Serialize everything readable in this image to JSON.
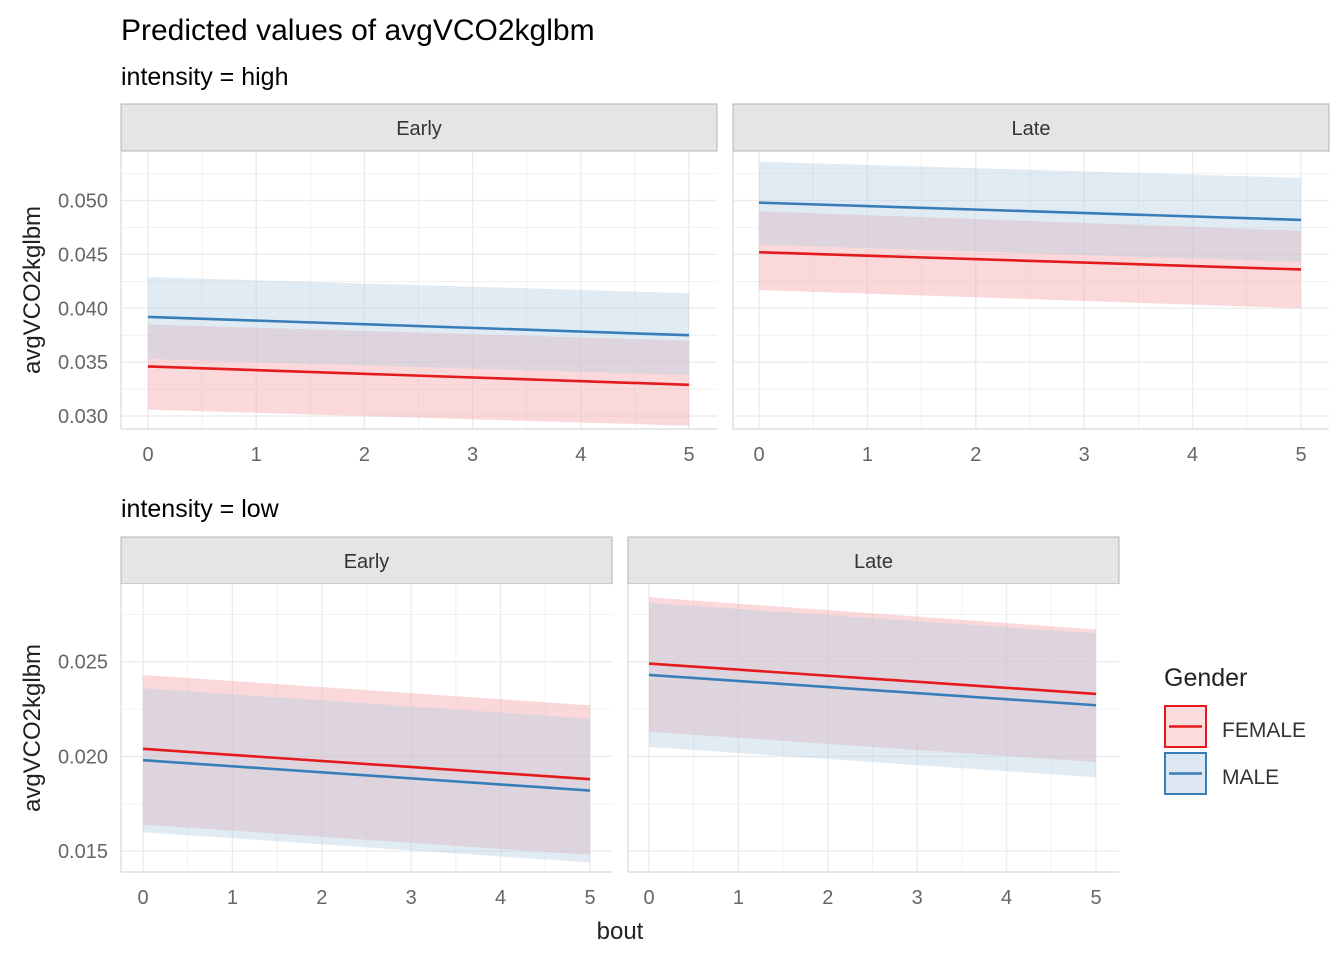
{
  "figure": {
    "title": "Predicted values of avgVCO2kglbm",
    "xlabel": "bout",
    "ylabel": "avgVCO2kglbm"
  },
  "legend": {
    "title": "Gender",
    "position": "right",
    "entries": [
      {
        "name": "FEMALE",
        "color": "#E41A1C"
      },
      {
        "name": "MALE",
        "color": "#377EB8"
      }
    ]
  },
  "colors": {
    "female_line": "#E41A1C",
    "female_band": "#F8B4B8",
    "male_line": "#377EB8",
    "male_band": "#B3CDE3",
    "strip_bg": "#E5E5E5",
    "grid": "#EBEBEB"
  },
  "chart_data": [
    {
      "type": "area",
      "group_title": "intensity = high",
      "facet": "Early",
      "xlim": [
        0,
        5
      ],
      "ylim": [
        0.0288,
        0.0545
      ],
      "xticks": [
        0,
        1,
        2,
        3,
        4,
        5
      ],
      "yticks": [
        0.03,
        0.035,
        0.04,
        0.045,
        0.05
      ],
      "ytick_labels": [
        "0.030",
        "0.035",
        "0.040",
        "0.045",
        "0.050"
      ],
      "grid": true,
      "series": [
        {
          "name": "FEMALE",
          "x": [
            0,
            5
          ],
          "y": [
            0.0346,
            0.0329
          ],
          "lower": [
            0.0306,
            0.0291
          ],
          "upper": [
            0.0385,
            0.037
          ]
        },
        {
          "name": "MALE",
          "x": [
            0,
            5
          ],
          "y": [
            0.0392,
            0.0375
          ],
          "lower": [
            0.0353,
            0.0338
          ],
          "upper": [
            0.0429,
            0.0414
          ]
        }
      ]
    },
    {
      "type": "area",
      "group_title": "intensity = high",
      "facet": "Late",
      "xlim": [
        0,
        5
      ],
      "ylim": [
        0.0288,
        0.0545
      ],
      "xticks": [
        0,
        1,
        2,
        3,
        4,
        5
      ],
      "yticks": [
        0.03,
        0.035,
        0.04,
        0.045,
        0.05
      ],
      "grid": true,
      "series": [
        {
          "name": "FEMALE",
          "x": [
            0,
            5
          ],
          "y": [
            0.0452,
            0.0436
          ],
          "lower": [
            0.0417,
            0.04
          ],
          "upper": [
            0.049,
            0.0472
          ]
        },
        {
          "name": "MALE",
          "x": [
            0,
            5
          ],
          "y": [
            0.0498,
            0.0482
          ],
          "lower": [
            0.0459,
            0.0443
          ],
          "upper": [
            0.0536,
            0.0521
          ]
        }
      ]
    },
    {
      "type": "area",
      "group_title": "intensity = low",
      "facet": "Early",
      "xlim": [
        0,
        5
      ],
      "ylim": [
        0.0139,
        0.0291
      ],
      "xticks": [
        0,
        1,
        2,
        3,
        4,
        5
      ],
      "yticks": [
        0.015,
        0.02,
        0.025
      ],
      "ytick_labels": [
        "0.015",
        "0.020",
        "0.025"
      ],
      "grid": true,
      "series": [
        {
          "name": "FEMALE",
          "x": [
            0,
            5
          ],
          "y": [
            0.0204,
            0.0188
          ],
          "lower": [
            0.0164,
            0.0148
          ],
          "upper": [
            0.0243,
            0.0227
          ]
        },
        {
          "name": "MALE",
          "x": [
            0,
            5
          ],
          "y": [
            0.0198,
            0.0182
          ],
          "lower": [
            0.016,
            0.0144
          ],
          "upper": [
            0.0236,
            0.022
          ]
        }
      ]
    },
    {
      "type": "area",
      "group_title": "intensity = low",
      "facet": "Late",
      "xlim": [
        0,
        5
      ],
      "ylim": [
        0.0139,
        0.0291
      ],
      "xticks": [
        0,
        1,
        2,
        3,
        4,
        5
      ],
      "yticks": [
        0.015,
        0.02,
        0.025
      ],
      "grid": true,
      "series": [
        {
          "name": "FEMALE",
          "x": [
            0,
            5
          ],
          "y": [
            0.0249,
            0.0233
          ],
          "lower": [
            0.0213,
            0.0197
          ],
          "upper": [
            0.0284,
            0.0267
          ]
        },
        {
          "name": "MALE",
          "x": [
            0,
            5
          ],
          "y": [
            0.0243,
            0.0227
          ],
          "lower": [
            0.0205,
            0.0189
          ],
          "upper": [
            0.0281,
            0.0265
          ]
        }
      ]
    }
  ]
}
